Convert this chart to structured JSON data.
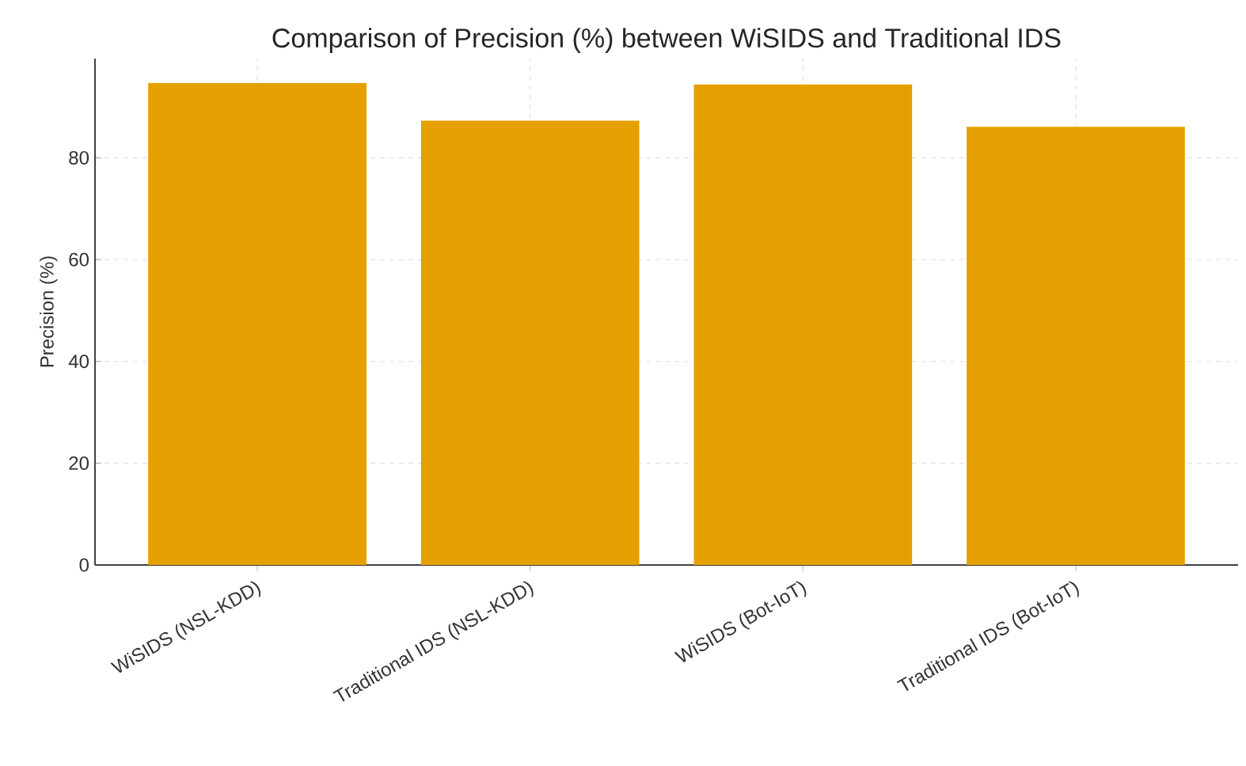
{
  "chart_data": {
    "type": "bar",
    "title": "Comparison of Precision (%) between WiSIDS and Traditional IDS",
    "ylabel": "Precision (%)",
    "categories": [
      "WiSIDS (NSL-KDD)",
      "Traditional IDS (NSL-KDD)",
      "WiSIDS (Bot-IoT)",
      "Traditional IDS (Bot-IoT)"
    ],
    "values": [
      94.7,
      87.3,
      94.4,
      86.1
    ],
    "color": "#e5a000",
    "ylim": [
      0,
      99.5
    ],
    "yticks": [
      0,
      20,
      40,
      60,
      80
    ],
    "grid": true
  }
}
